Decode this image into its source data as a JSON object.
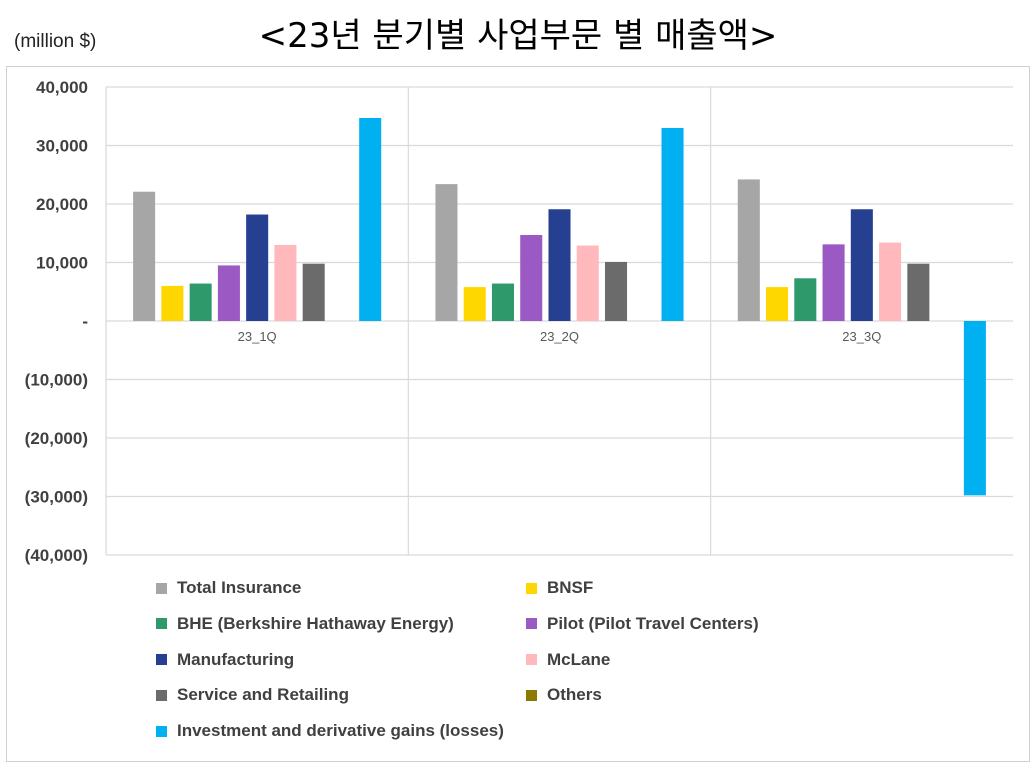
{
  "title": "<23년 분기별 사업부문 별 매출액>",
  "unit": "(million $)",
  "chart_data": {
    "type": "bar",
    "title": "<23년 분기별 사업부문 별 매출액>",
    "ylabel": "(million $)",
    "xlabel": "",
    "ylim": [
      -40000,
      40000
    ],
    "yticks": [
      40000,
      30000,
      20000,
      10000,
      0,
      -10000,
      -20000,
      -30000,
      -40000
    ],
    "ytick_labels": [
      "40,000",
      "30,000",
      "20,000",
      "10,000",
      "-",
      "(10,000)",
      "(20,000)",
      "(30,000)",
      "(40,000)"
    ],
    "categories": [
      "23_1Q",
      "23_2Q",
      "23_3Q"
    ],
    "grid": true,
    "legend_position": "bottom",
    "series": [
      {
        "name": "Total Insurance",
        "color": "#a6a6a6",
        "values": [
          22100,
          23400,
          24200
        ]
      },
      {
        "name": "BNSF",
        "color": "#ffd700",
        "values": [
          6000,
          5800,
          5800
        ]
      },
      {
        "name": "BHE (Berkshire Hathaway Energy)",
        "color": "#2e9a6b",
        "values": [
          6400,
          6400,
          7300
        ]
      },
      {
        "name": "Pilot (Pilot Travel Centers)",
        "color": "#9b59c4",
        "values": [
          9500,
          14700,
          13100
        ]
      },
      {
        "name": "Manufacturing",
        "color": "#253f91",
        "values": [
          18200,
          19100,
          19100
        ]
      },
      {
        "name": "McLane",
        "color": "#ffb8bc",
        "values": [
          13000,
          12900,
          13400
        ]
      },
      {
        "name": "Service and Retailing",
        "color": "#6b6b6b",
        "values": [
          9800,
          10100,
          9800
        ]
      },
      {
        "name": "Others",
        "color": "#8c7a00",
        "values": [
          0,
          0,
          0
        ]
      },
      {
        "name": "Investment and derivative gains (losses)",
        "color": "#00b0f0",
        "values": [
          34700,
          33000,
          -29800
        ]
      }
    ]
  }
}
